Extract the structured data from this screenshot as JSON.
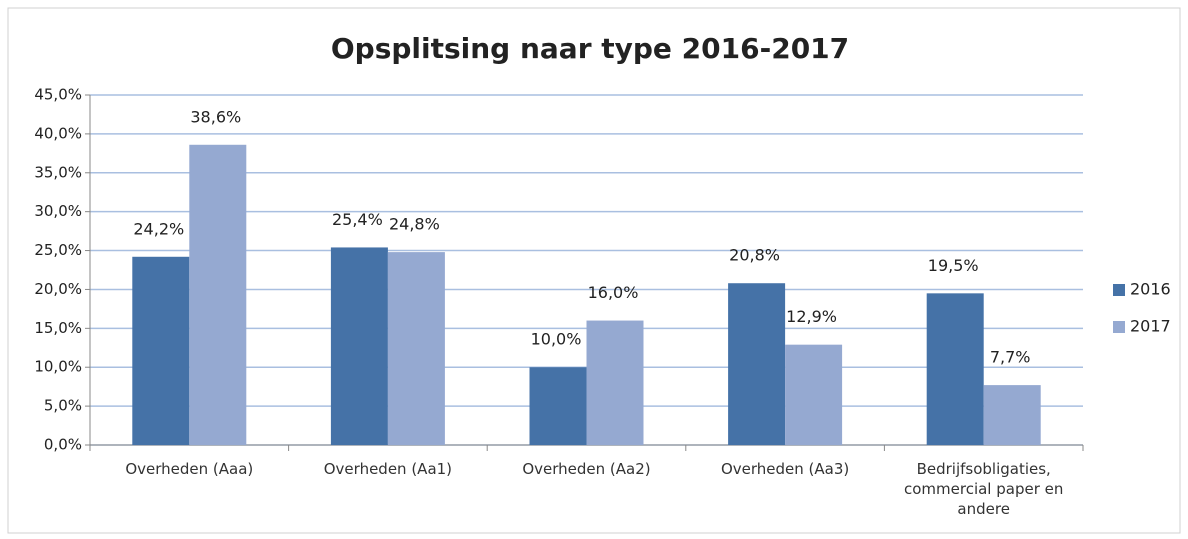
{
  "chart_data": {
    "type": "bar",
    "title": "Opsplitsing naar type 2016-2017",
    "categories": [
      "Overheden (Aaa)",
      "Overheden (Aa1)",
      "Overheden (Aa2)",
      "Overheden (Aa3)",
      "Bedrijfsobligaties, commercial paper en andere"
    ],
    "series": [
      {
        "name": "2016",
        "color": "#4572a7",
        "values": [
          24.2,
          25.4,
          10.0,
          20.8,
          19.5
        ],
        "value_labels": [
          "24,2%",
          "25,4%",
          "10,0%",
          "20,8%",
          "19,5%"
        ]
      },
      {
        "name": "2017",
        "color": "#95a9d1",
        "values": [
          38.6,
          24.8,
          16.0,
          12.9,
          7.7
        ],
        "value_labels": [
          "38,6%",
          "24,8%",
          "16,0%",
          "12,9%",
          "7,7%"
        ]
      }
    ],
    "ylim": [
      0,
      45
    ],
    "yticks": [
      {
        "value": 0,
        "label": "0,0%"
      },
      {
        "value": 5,
        "label": "5,0%"
      },
      {
        "value": 10,
        "label": "10,0%"
      },
      {
        "value": 15,
        "label": "15,0%"
      },
      {
        "value": 20,
        "label": "20,0%"
      },
      {
        "value": 25,
        "label": "25,0%"
      },
      {
        "value": 30,
        "label": "30,0%"
      },
      {
        "value": 35,
        "label": "35,0%"
      },
      {
        "value": 40,
        "label": "40,0%"
      },
      {
        "value": 45,
        "label": "45,0%"
      }
    ],
    "grid": true,
    "legend": "right"
  }
}
